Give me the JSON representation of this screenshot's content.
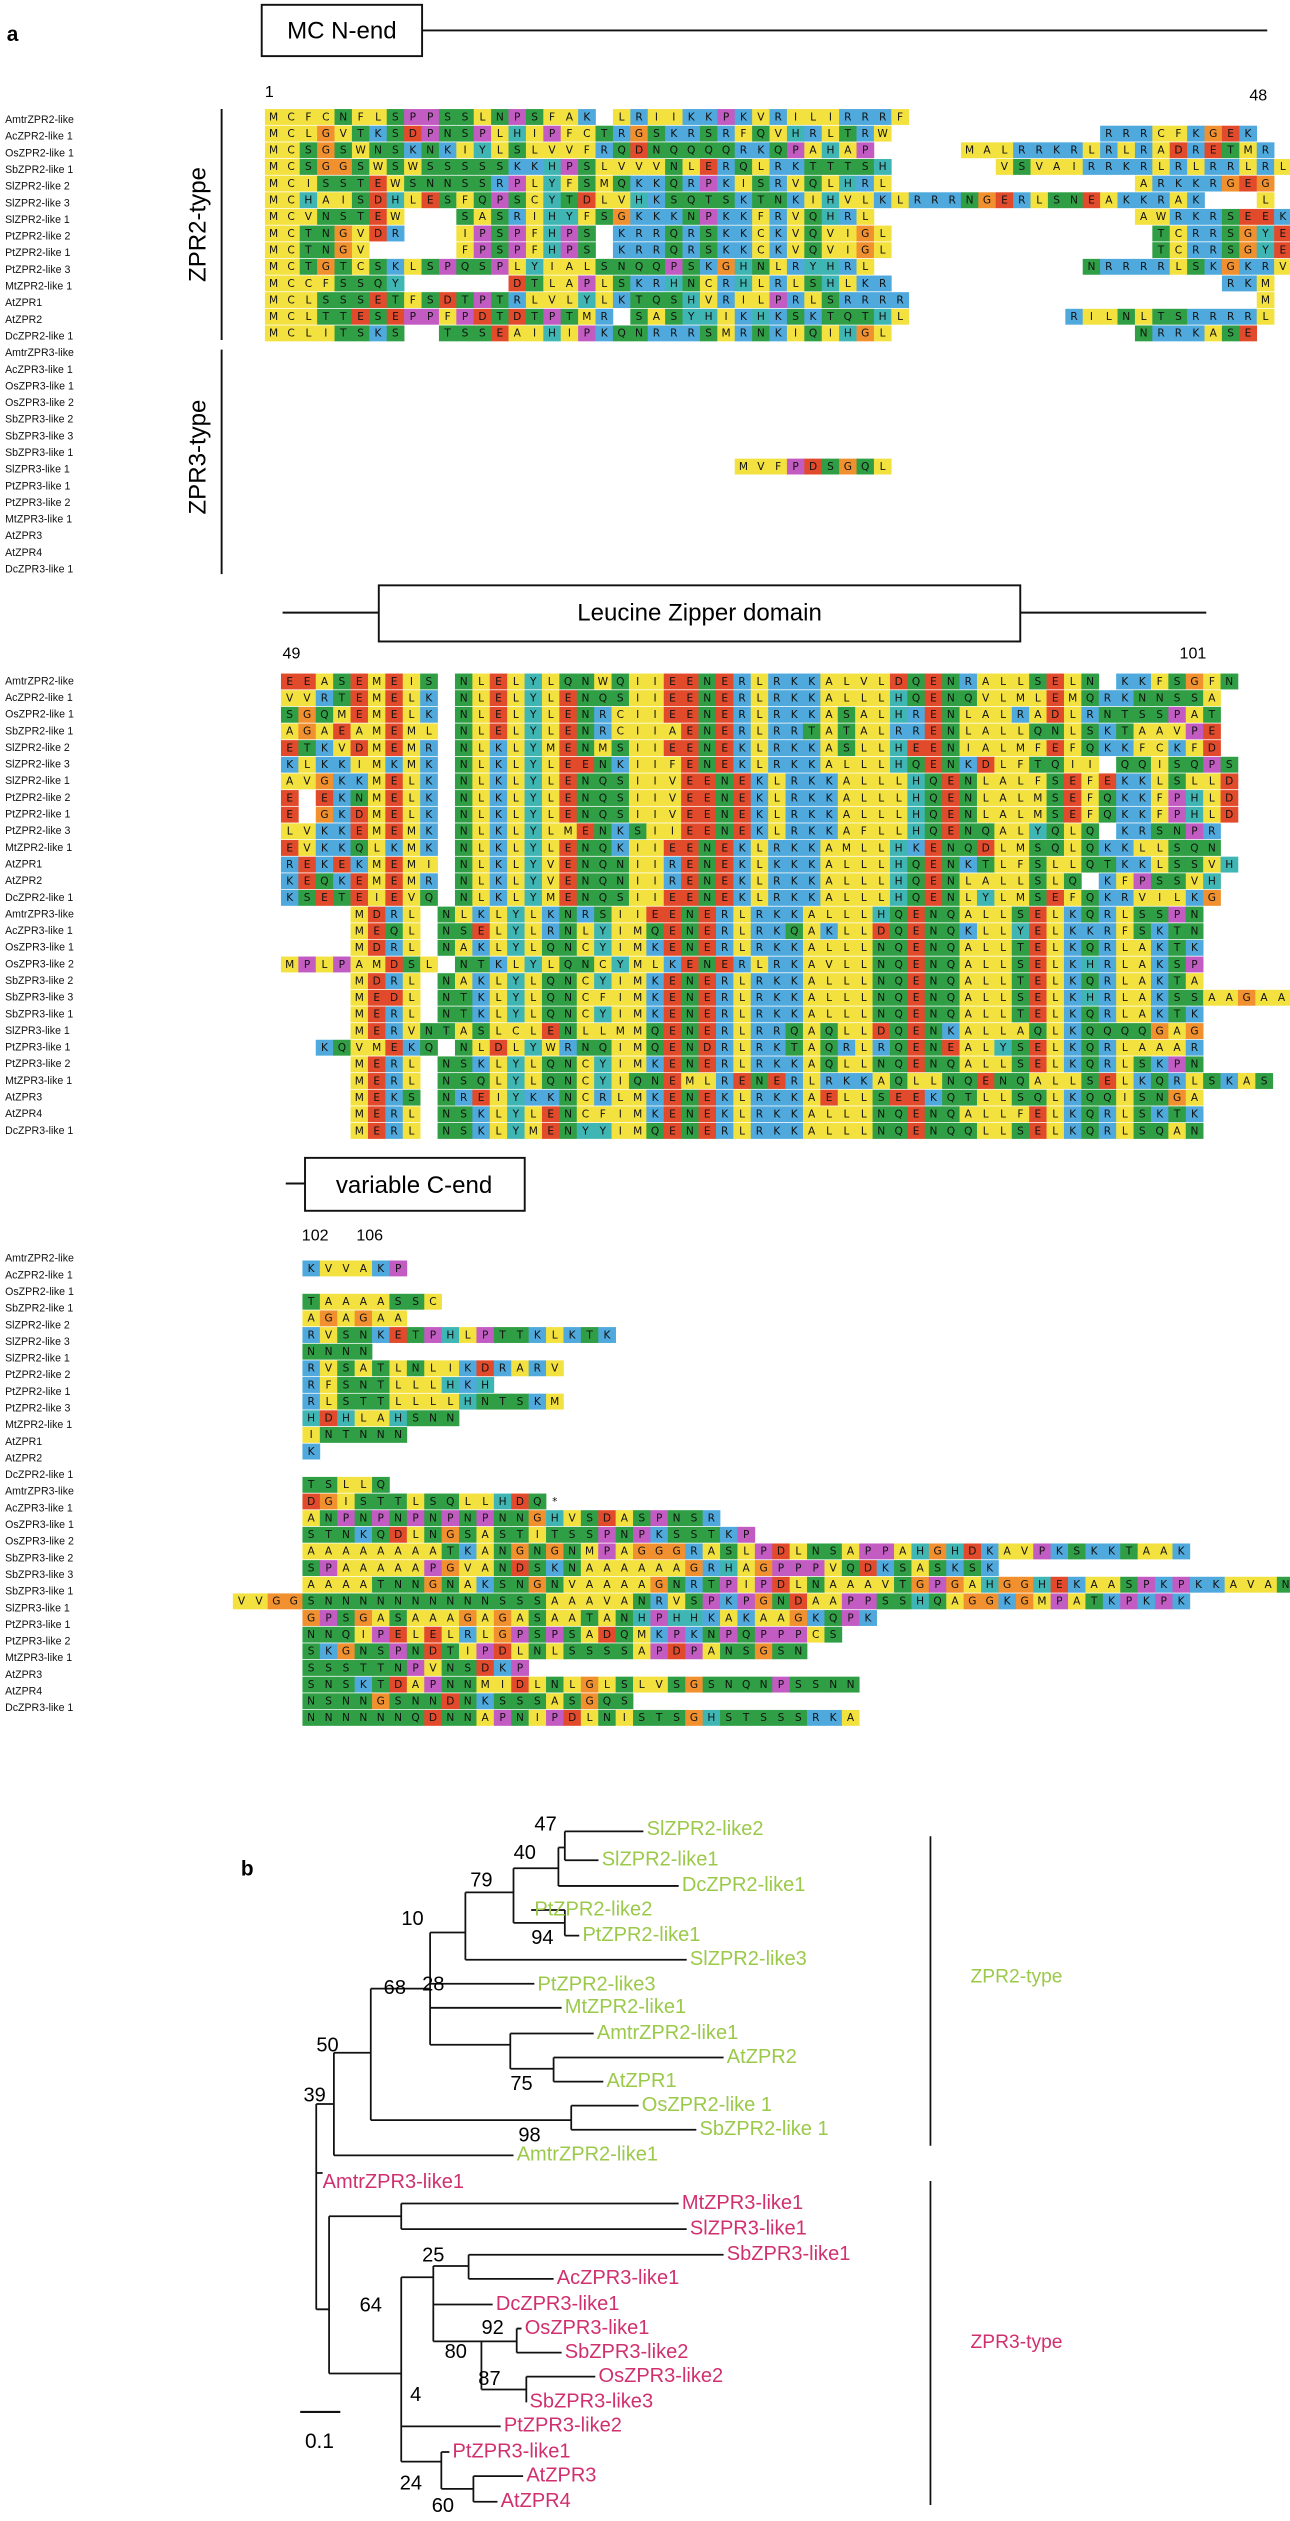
{
  "panel_a": {
    "label": "a",
    "regions": [
      {
        "title": "MC N-end",
        "start": 1,
        "end": 48
      },
      {
        "title": "Leucine Zipper domain",
        "start": 49,
        "end": 101
      },
      {
        "title": "variable C-end",
        "start": 102,
        "end": 106
      }
    ],
    "groups": [
      "ZPR2-type",
      "ZPR3-type"
    ],
    "sequences": [
      {
        "name": "AmtrZPR2-like",
        "n_end": "MCFCNFLSPPSSLNPSFAK LRIIKKPKVRILIRRRF",
        "leucine_zipper": "EEASEMEIS NLELYLQNWQIIEENERLRKKALVLDQENRALLSELN KKFSGFN",
        "c_end": "    KVVAKP"
      },
      {
        "name": "AcZPR2-like 1",
        "n_end": "MCLGVTKSDPNSPLHIPFCTRGSKRSRFQVHRLTRW            RRRCFKGEK",
        "leucine_zipper": "VVRTEMELK NLELYLENQSIIEENERLRKKALLLHQENQVLMLEMQRKNNSSA"
      },
      {
        "name": "OsZPR2-like 1",
        "n_end": "MCSGSWNSKNKIYLSLVVFRQDNQQQQRKQPAHAP     MALRRKRLRLRADRETMR",
        "leucine_zipper": "SGQMEMELK NLELYLENRCIIEENERLRKKASALHRENLALRADLRNTSSPAT",
        "c_end": "    TAAAASSC"
      },
      {
        "name": "SbZPR2-like 1",
        "n_end": "MCSGGSWSWSSSSSKKHPSLVVVNLERQLRKTTTSH      VSVAIRRKRLRLRRLRL",
        "leucine_zipper": "AGAEAMEML NLELYLENRCIIAENERLRRTATALRRENLALLQNLSKTAAVPE",
        "c_end": "    AGAGAA"
      },
      {
        "name": "SlZPR2-like 2",
        "n_end": "MCISSTEWSNNSSRPLYFSMQKKQRPKISRVQLHRL              ARKKRGEG",
        "leucine_zipper": "ETKVDMEMR NLKLYMENMSIIEENEKLRKKASLLHEENIALMFEFQKKFCKFD",
        "c_end": "    RVSNKETPHLPTTKLKTK"
      },
      {
        "name": "SlZPR2-like 3",
        "n_end": "MCHAISDHLESFQPSCYTDLVHKSQTSKTNKIHVLKLRRRNGERLSNEAKKRAK   L",
        "leucine_zipper": "KLKKIMKMK NLKLYLEENKIIFENEKLRKKALLLHQENKDLFTQII QQISQPS",
        "c_end": "    NNNN"
      },
      {
        "name": "SlZPR2-like 1",
        "n_end": "MCVNSTEW   SASRIHYFSGKKKNPKKFRVQHRL               AWRKRSEEK",
        "leucine_zipper": "AVGKKMELK NLKLYLENQSIIVEENEKLRKKALLLHQENLALFSEFEKKLSLLD",
        "c_end": "    RVSATLNLIKDRARV"
      },
      {
        "name": "PtZPR2-like 2",
        "n_end": "MCTNGVDR   IPSPFHPS KRRQRSKKCKVQVIGL               TCRRSGYEE",
        "leucine_zipper": "E EKNMELK NLKLYLENQSIIVEENEKLRKKALLLHQENLALMSEFQKKFPHLD",
        "c_end": "    RFSNTLLLHKH"
      },
      {
        "name": "PtZPR2-like 1",
        "n_end": "MCTNGV     FPSPFHPS KRRQRSKKCKVQVIGL               TCRRSGYEE",
        "leucine_zipper": "E GKDMELK NLKLYLENQSIIVEENEKLRKKALLLHQENLALMSEFQKKFPHLD",
        "c_end": "    RLSTTLLLLHNTSKM"
      },
      {
        "name": "PtZPR2-like 3",
        "n_end": "MCTGTCSKLSPQSPLYIALSNQQPSKGHNLRYHRL            NRRRRLSKGKRVAL",
        "leucine_zipper": "LVKKEMEMK NLKLYLMENKSIIEENEKLRKKAFLLHQENQALYQLQ KRSNPR",
        "c_end": "    HDHLAHSNN"
      },
      {
        "name": "MtZPR2-like 1",
        "n_end": "MCCFSSQY      DTLAPLSKRHNCRHLRLSHLKR                   RKM",
        "leucine_zipper": "EVKKQLKMK NLKLYLENQKIIEENEKLRKKAMLLHKENQDLMSQLQKKLLSQN",
        "c_end": "    INTNNN"
      },
      {
        "name": "AtZPR1",
        "n_end": "MCLSSSETFSDTPTRLVLYLKTQSHVRILPRLSRRRR                    M",
        "leucine_zipper": "REKEKMEMI NLKLYVENQNIIRENEKLKKKALLLHQENKTLFSLLQTKKLSSVH",
        "c_end": "    K"
      },
      {
        "name": "AtZPR2",
        "n_end": "MCLTTESEPPFPDTDTPTMR SASYHIKHKSKTQTHL         RILNLTSRRRRL",
        "leucine_zipper": "KEQKEMEMR NLKLYVENQNIIRENEKLRKKALLLHQENLALLSLQ KFPSSVH"
      },
      {
        "name": "DcZPR2-like 1",
        "n_end": "MCLITSKS  TSSEAIHIPKQNRRRSMRNKIQIHGL              NRRKASE",
        "leucine_zipper": "KSETEIEVQ NLKLYMENQSIIEENEKLRKKALLLHQENLYLMSEFQKRVILKG",
        "c_end": "    TSLLQ"
      },
      {
        "name": "AmtrZPR3-like",
        "leucine_zipper": "    MDRL NLKLYLKNRSIIEENERLRKKALLLHQENQALLSELKQRLSSPN",
        "c_end": "    DGISTTLSQLLHDQ*"
      },
      {
        "name": "AcZPR3-like 1",
        "leucine_zipper": "    MEQL NSELYLRNLYIMQENERLRKQAKLLDQENQKLLYELKKRFSKTN",
        "c_end": "    ANPNPNPNPNPNNGHVSDASPNSR"
      },
      {
        "name": "OsZPR3-like 1",
        "leucine_zipper": "    MDRL NAKLYLQNCYIMKENERLRKKALLLNQENQALLTELKQRLAKTK",
        "c_end": "    STNKQDLNGSASTITSSPNPKSSTKP"
      },
      {
        "name": "OsZPR3-like 2",
        "leucine_zipper": "MPLPAMDSL NTKLYLQNCYMLKENERLRKAVLLNQENQALLSELKHRLAKSP",
        "c_end": "    AAAAAAAATKANGNGNMPAGGGRASLPDLNSAPPAHGHDKAVPKSKKTAAK"
      },
      {
        "name": "SbZPR3-like 2",
        "leucine_zipper": "    MDRL NAKLYLQNCYIMKENERLRKKALLLNQENQALLTELKQRLAKTA",
        "c_end": "    SPAAAAAPGVANDSKNAAAAAAGRHAGPPPVQDKSASKSK"
      },
      {
        "name": "SbZPR3-like 3",
        "leucine_zipper": "    MEDL NTKLYLQNCFIMKENERLRKKALLLNQENQALLSELKHRLAKSSAAGAA",
        "c_end": "    AAAATNNGNAKSNGNVAAAAGNRTPIPDLNAAAVTGPGAHGGHEKAASPKPKKAVAN"
      },
      {
        "name": "SbZPR3-like 1",
        "leucine_zipper": "    MERL NTKLYLQNCYIMKENERLRKKALLLNQENQALLTELKQRLAKTK",
        "c_end": "VVGGSNNNNNNNNNNSSSAAAVANRVSPKPGNDAAPPSSHQAGGKGMPATKPKPK"
      },
      {
        "name": "SlZPR3-like 1",
        "n_end": "                           MVFPDSGQL",
        "leucine_zipper": "    MERVNTASLCLENLLMMQENERLRRQAQLLDQENKALLAQLKQQQQGAG",
        "c_end": "    GPSGASAAAGAGASAATANHPHHKAKAAGKQPK"
      },
      {
        "name": "PtZPR3-like 1",
        "leucine_zipper": "  KQVMEKQ NLDLYWRNQIMQENDRLRKTAQRLRQENEALYSELKQRLAAAR",
        "c_end": "    NNQIPELELRLGPSPSADQMKPKNPQPPPCS"
      },
      {
        "name": "PtZPR3-like 2",
        "leucine_zipper": "    MERL NSKLYLQNCYIMKENERLRKKAQLLNQENQALLSELKQRLSKPN",
        "c_end": "    SKGNSPNDTIPDLNLSSSSAPDPANSGSN"
      },
      {
        "name": "MtZPR3-like 1",
        "leucine_zipper": "    MERL NSQLYLQNCYIQNEMLRENERLRKKAQLLNQENQALLSELKQRLSKAS",
        "c_end": "    SSSTTNPVNSDKP"
      },
      {
        "name": "AtZPR3",
        "leucine_zipper": "    MEKS NREIYKKNCRLMKENEKLRKKAELLSEEKQTLLSQLKQQISNGA",
        "c_end": "    SNSKTDAPNNMIDLNLGLSLVSGSNQNPSSNN"
      },
      {
        "name": "AtZPR4",
        "leucine_zipper": "    MERL NSKLYLENCFIMKENEKLRKKALLLNQENQALLFELKQRLSKTK",
        "c_end": "    NSNNGSNNDNKSSSASGQS"
      },
      {
        "name": "DcZPR3-like 1",
        "leucine_zipper": "    MERL NSKLYMENYYIMQENERLRKKALLLNQENQQLLSELKQRLSQAN",
        "c_end": "    NNNNNNQDNNAPNIPDLNISTSGHSTSSSRKA"
      }
    ]
  },
  "panel_b": {
    "label": "b",
    "zpr2_leaves": [
      "SlZPR2-like2",
      "SlZPR2-like1",
      "DcZPR2-like1",
      "PtZPR2-like2",
      "PtZPR2-like1",
      "SlZPR2-like3",
      "PtZPR2-like3",
      "MtZPR2-like1",
      "AmtrZPR2-like1",
      "AtZPR2",
      "AtZPR1",
      "OsZPR2-like 1",
      "SbZPR2-like 1",
      "AmtrZPR2-like1"
    ],
    "zpr3_leaves": [
      "AmtrZPR3-like1",
      "MtZPR3-like1",
      "SlZPR3-like1",
      "SbZPR3-like1",
      "AcZPR3-like1",
      "DcZPR3-like1",
      "OsZPR3-like1",
      "SbZPR3-like2",
      "OsZPR3-like2",
      "SbZPR3-like3",
      "PtZPR3-like2",
      "PtZPR3-like1",
      "AtZPR3",
      "AtZPR4"
    ],
    "bootstrap": [
      47,
      40,
      79,
      10,
      94,
      68,
      28,
      50,
      75,
      39,
      98,
      25,
      64,
      92,
      80,
      87,
      4,
      24,
      60
    ],
    "groups": [
      "ZPR2-type",
      "ZPR3-type"
    ],
    "scale": "0.1"
  }
}
